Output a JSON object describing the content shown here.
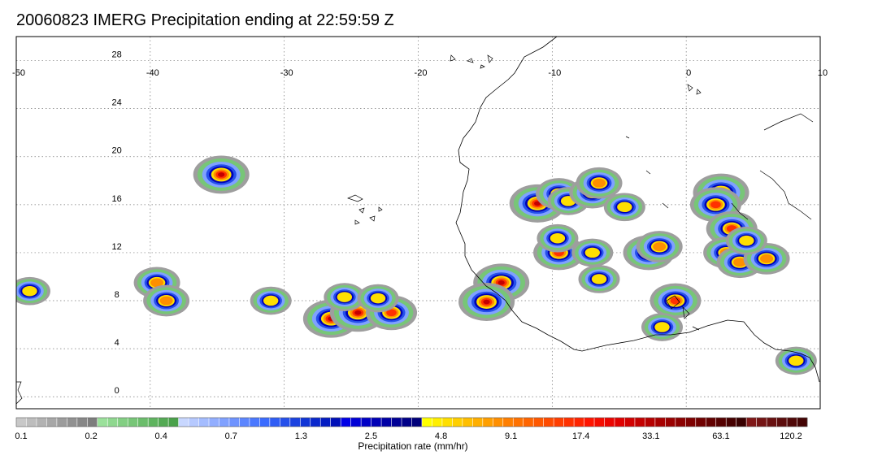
{
  "title": "20060823 IMERG Precipitation ending at 22:59:59 Z",
  "map": {
    "lon_range": [
      -50,
      10
    ],
    "lat_range": [
      -1,
      30
    ],
    "lon_ticks": [
      "-50",
      "-40",
      "-30",
      "-20",
      "-10",
      "0",
      "10"
    ],
    "lon_tick_values": [
      -50,
      -40,
      -30,
      -20,
      -10,
      0,
      10
    ],
    "lat_ticks": [
      "28",
      "24",
      "20",
      "16",
      "12",
      "8",
      "4",
      "0"
    ],
    "lat_tick_values": [
      28,
      24,
      20,
      16,
      12,
      8,
      4,
      0
    ],
    "gridlines": "dotted"
  },
  "colorbar": {
    "label": "Precipitation rate (mm/hr)",
    "tick_labels": [
      "0.1",
      "0.2",
      "0.4",
      "0.7",
      "1.3",
      "2.5",
      "4.8",
      "9.1",
      "17.4",
      "33.1",
      "63.1",
      "120.2"
    ],
    "colors": [
      "#c8c8c8",
      "#bdbdbd",
      "#b2b2b2",
      "#a7a7a7",
      "#9c9c9c",
      "#919191",
      "#878787",
      "#7d7d7d",
      "#9be19b",
      "#8fd88f",
      "#83cf83",
      "#77c677",
      "#6bbd6b",
      "#5fb45f",
      "#54aa54",
      "#4aa14a",
      "#c8d7ff",
      "#b6c9ff",
      "#a4bcff",
      "#92aeff",
      "#80a1ff",
      "#6e93ff",
      "#5c86ff",
      "#4a78ff",
      "#3a6bff",
      "#2f5df5",
      "#2550eb",
      "#1b42e0",
      "#1035d6",
      "#0a28cc",
      "#041cc2",
      "#0010b8",
      "#0000e6",
      "#0000d6",
      "#0000c6",
      "#0000b6",
      "#0000a6",
      "#000096",
      "#000088",
      "#00007a",
      "#ffff00",
      "#ffef00",
      "#ffdf00",
      "#ffcf00",
      "#ffbf00",
      "#ffaf00",
      "#ff9f00",
      "#ff8f00",
      "#ff7f00",
      "#ff7200",
      "#ff6500",
      "#ff5800",
      "#ff4b00",
      "#ff3e00",
      "#ff3100",
      "#ff2400",
      "#ff1400",
      "#f50c00",
      "#eb0400",
      "#e00000",
      "#d20000",
      "#c40000",
      "#b60000",
      "#a80000",
      "#9a0000",
      "#8c0000",
      "#7e0000",
      "#700000",
      "#620000",
      "#540000",
      "#460000",
      "#380000",
      "#801818",
      "#741414",
      "#681010",
      "#5c0c0c",
      "#500808",
      "#440404"
    ]
  },
  "cells": [
    {
      "lon": -34.7,
      "lat": 18.5,
      "peak": "17.4"
    },
    {
      "lon": -26.5,
      "lat": 6.5,
      "peak": "17.4"
    },
    {
      "lon": -24.5,
      "lat": 7.0,
      "peak": "17.4"
    },
    {
      "lon": -22.0,
      "lat": 7.0,
      "peak": "9.1"
    },
    {
      "lon": -25.5,
      "lat": 8.3,
      "peak": "2.5"
    },
    {
      "lon": -23.0,
      "lat": 8.2,
      "peak": "2.5"
    },
    {
      "lon": -39.5,
      "lat": 9.5,
      "peak": "4.8"
    },
    {
      "lon": -38.8,
      "lat": 8.0,
      "peak": "4.8"
    },
    {
      "lon": -31.0,
      "lat": 8.0,
      "peak": "2.5"
    },
    {
      "lon": -49.0,
      "lat": 8.8,
      "peak": "2.5"
    },
    {
      "lon": -13.8,
      "lat": 9.5,
      "peak": "33.1"
    },
    {
      "lon": -14.9,
      "lat": 7.9,
      "peak": "17.4"
    },
    {
      "lon": -11.1,
      "lat": 16.1,
      "peak": "17.4"
    },
    {
      "lon": -9.5,
      "lat": 16.9,
      "peak": "4.8"
    },
    {
      "lon": -8.8,
      "lat": 16.3,
      "peak": "2.5"
    },
    {
      "lon": -7.0,
      "lat": 17.0,
      "peak": "4.8"
    },
    {
      "lon": -6.5,
      "lat": 17.8,
      "peak": "4.8"
    },
    {
      "lon": -4.6,
      "lat": 15.8,
      "peak": "2.5"
    },
    {
      "lon": -9.5,
      "lat": 12.0,
      "peak": "9.1"
    },
    {
      "lon": -9.6,
      "lat": 13.2,
      "peak": "2.5"
    },
    {
      "lon": -7.0,
      "lat": 12.0,
      "peak": "2.5"
    },
    {
      "lon": -2.8,
      "lat": 12.0,
      "peak": "9.1"
    },
    {
      "lon": -2.0,
      "lat": 12.5,
      "peak": "4.8"
    },
    {
      "lon": -6.5,
      "lat": 9.8,
      "peak": "2.5"
    },
    {
      "lon": 2.6,
      "lat": 17.0,
      "peak": "17.4"
    },
    {
      "lon": 2.2,
      "lat": 16.0,
      "peak": "9.1"
    },
    {
      "lon": 3.4,
      "lat": 14.0,
      "peak": "9.1"
    },
    {
      "lon": 3.0,
      "lat": 12.0,
      "peak": "4.8"
    },
    {
      "lon": 4.0,
      "lat": 11.2,
      "peak": "4.8"
    },
    {
      "lon": 6.0,
      "lat": 11.5,
      "peak": "4.8"
    },
    {
      "lon": 4.5,
      "lat": 13.0,
      "peak": "2.5"
    },
    {
      "lon": -0.8,
      "lat": 8.0,
      "peak": "9.1"
    },
    {
      "lon": -1.8,
      "lat": 5.8,
      "peak": "2.5"
    },
    {
      "lon": 8.2,
      "lat": 3.0,
      "peak": "2.5"
    }
  ]
}
